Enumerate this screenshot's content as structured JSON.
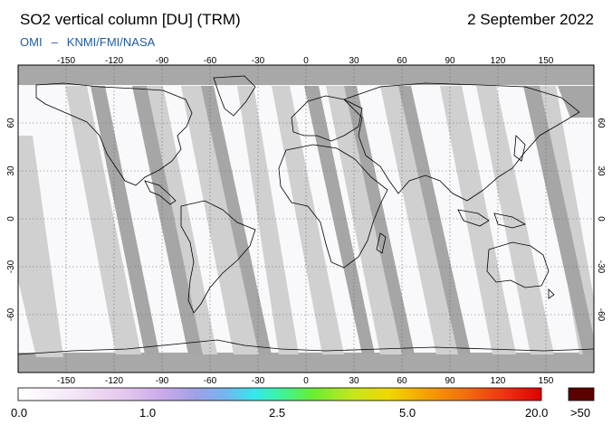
{
  "header": {
    "title": "SO2 vertical column [DU] (TRM)",
    "date": "2 September 2022",
    "credit_left": "OMI",
    "credit_sep": "–",
    "credit_right": "KNMI/FMI/NASA"
  },
  "map": {
    "lon_ticks_top": [
      "-150",
      "-120",
      "-90",
      "-60",
      "-30",
      "0",
      "30",
      "60",
      "90",
      "120",
      "150"
    ],
    "lon_ticks_bottom": [
      "-150",
      "-120",
      "-90",
      "-60",
      "-30",
      "0",
      "30",
      "60",
      "90",
      "120",
      "150"
    ],
    "lat_ticks": [
      "60",
      "30",
      "0",
      "-30",
      "-60"
    ],
    "colors": {
      "land_fill": "#f7f3fb",
      "swath_light": "#d0d0d0",
      "swath_dark": "#a6a6a6",
      "polar_gray": "#a8a8a8",
      "coast": "#000000"
    }
  },
  "colorbar": {
    "labels": [
      "0.0",
      "1.0",
      "2.5",
      "5.0",
      "20.0",
      ">50"
    ],
    "overflow_color": "#5a0000"
  }
}
